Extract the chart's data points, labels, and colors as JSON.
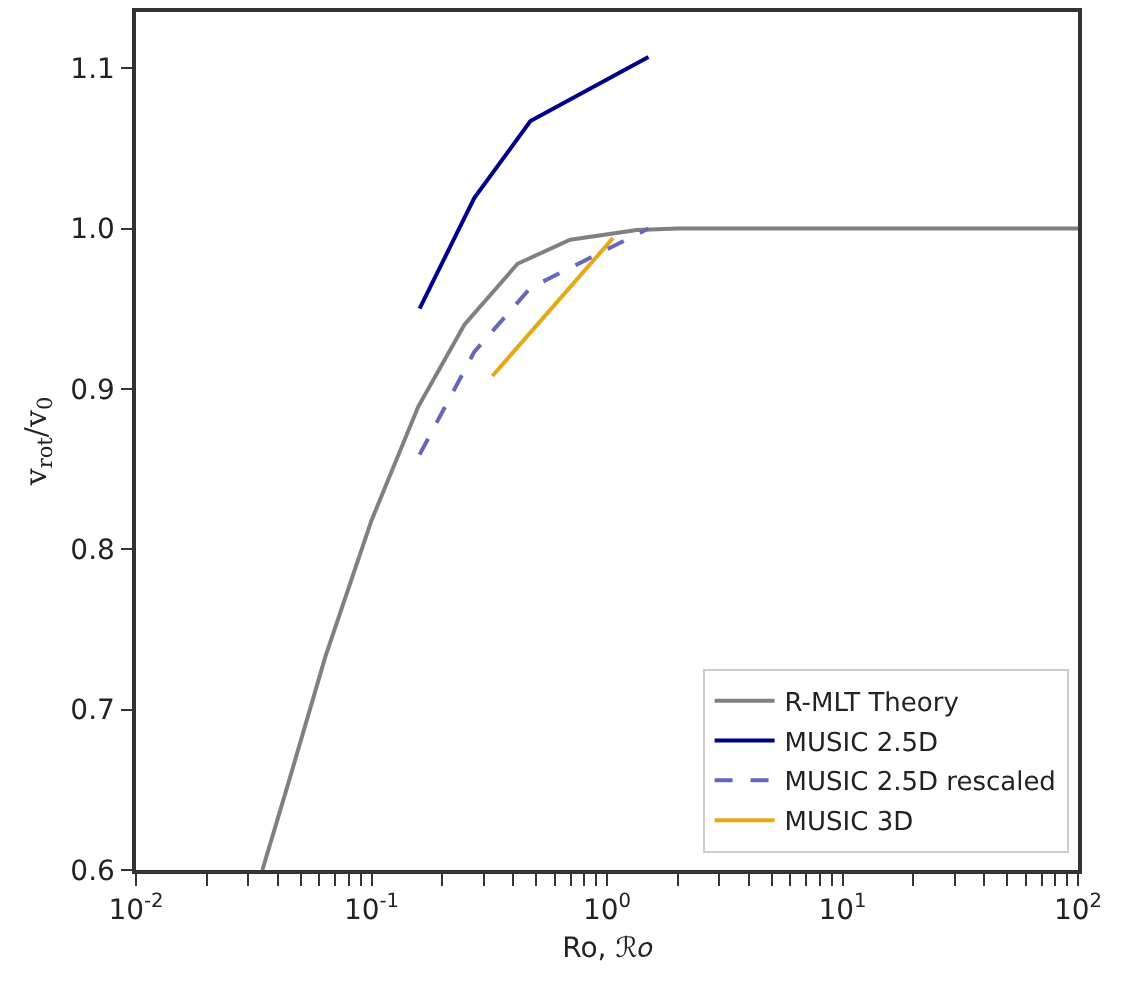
{
  "chart_data": {
    "type": "line",
    "xlabel": "Ro, ℛ𝑜",
    "ylabel": "v$_{rot}$/v$_{0}$",
    "log": "x",
    "grid": false,
    "legend": "bottom right",
    "marker": "none",
    "xlim": [
      0.01,
      100
    ],
    "ylim": [
      0.6,
      1.135
    ],
    "xticks": [
      {
        "value": 0.01,
        "label": "10$^{-2}$"
      },
      {
        "value": 0.02,
        "label": null
      },
      {
        "value": 0.03,
        "label": null
      },
      {
        "value": 0.04,
        "label": null
      },
      {
        "value": 0.05,
        "label": null
      },
      {
        "value": 0.06,
        "label": null
      },
      {
        "value": 0.07,
        "label": null
      },
      {
        "value": 0.08,
        "label": null
      },
      {
        "value": 0.09,
        "label": null
      },
      {
        "value": 0.1,
        "label": "10$^{-1}$"
      },
      {
        "value": 0.2,
        "label": null
      },
      {
        "value": 0.3,
        "label": null
      },
      {
        "value": 0.4,
        "label": null
      },
      {
        "value": 0.5,
        "label": null
      },
      {
        "value": 0.6,
        "label": null
      },
      {
        "value": 0.7,
        "label": null
      },
      {
        "value": 0.8,
        "label": null
      },
      {
        "value": 0.9,
        "label": null
      },
      {
        "value": 1,
        "label": "10$^{0}$"
      },
      {
        "value": 2,
        "label": null
      },
      {
        "value": 3,
        "label": null
      },
      {
        "value": 4,
        "label": null
      },
      {
        "value": 5,
        "label": null
      },
      {
        "value": 6,
        "label": null
      },
      {
        "value": 7,
        "label": null
      },
      {
        "value": 8,
        "label": null
      },
      {
        "value": 9,
        "label": null
      },
      {
        "value": 10,
        "label": "10$^{1}$"
      },
      {
        "value": 20,
        "label": null
      },
      {
        "value": 30,
        "label": null
      },
      {
        "value": 40,
        "label": null
      },
      {
        "value": 50,
        "label": null
      },
      {
        "value": 60,
        "label": null
      },
      {
        "value": 70,
        "label": null
      },
      {
        "value": 80,
        "label": null
      },
      {
        "value": 90,
        "label": null
      },
      {
        "value": 100,
        "label": "10$^{2}$"
      }
    ],
    "yticks": [
      {
        "value": 0.6,
        "label": "0.6"
      },
      {
        "value": 0.7,
        "label": "0.7"
      },
      {
        "value": 0.8,
        "label": "0.8"
      },
      {
        "value": 0.9,
        "label": "0.9"
      },
      {
        "value": 1.0,
        "label": "1.0"
      },
      {
        "value": 1.1,
        "label": "1.1"
      }
    ],
    "series": [
      {
        "name": "R-MLT Theory",
        "color": "#808080",
        "line_style": "solid",
        "x": [
          0.0344,
          0.0433,
          0.0637,
          0.1,
          0.158,
          0.248,
          0.417,
          0.698,
          1.34,
          2,
          10,
          100
        ],
        "values": [
          0.6,
          0.649,
          0.733,
          0.818,
          0.889,
          0.94,
          0.978,
          0.993,
          0.999,
          1.0,
          1.0,
          1.0
        ]
      },
      {
        "name": "MUSIC 2.5D",
        "color": "#00008b",
        "line_style": "solid",
        "x": [
          0.16,
          0.273,
          0.473,
          1.5
        ],
        "values": [
          0.95,
          1.019,
          1.067,
          1.107
        ]
      },
      {
        "name": "MUSIC 2.5D rescaled",
        "color": "#6666bb",
        "line_style": "dashed",
        "x": [
          0.16,
          0.273,
          0.473,
          1.5
        ],
        "values": [
          0.859,
          0.923,
          0.963,
          1.0
        ]
      },
      {
        "name": "MUSIC 3D",
        "color": "#e6a817",
        "line_style": "solid",
        "x": [
          0.326,
          1.06
        ],
        "values": [
          0.908,
          0.994
        ]
      }
    ]
  }
}
